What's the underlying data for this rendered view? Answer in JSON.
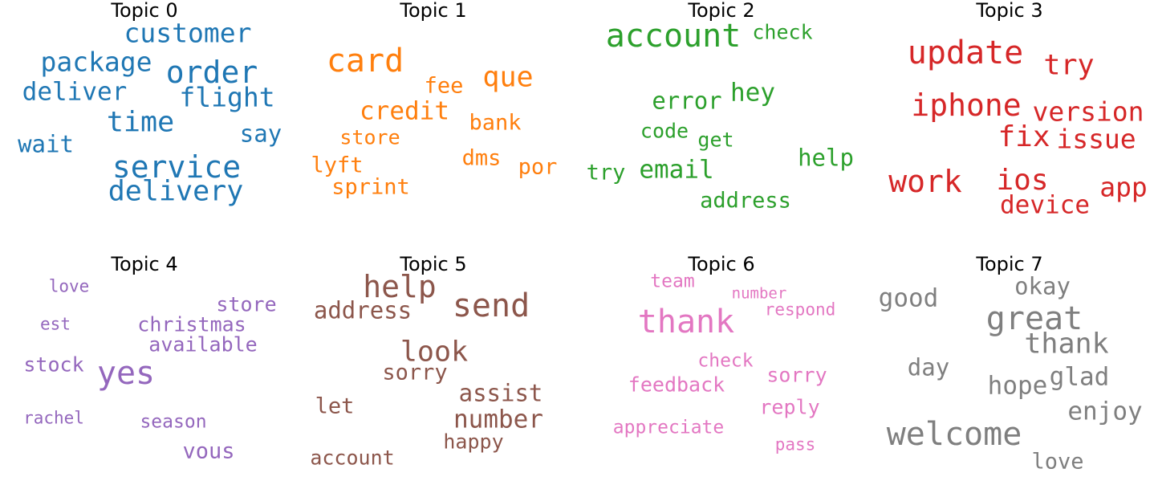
{
  "chart_data": [
    {
      "type": "wordcloud",
      "title": "Topic 0",
      "color": "#1f77b4",
      "words": [
        "customer",
        "package",
        "order",
        "deliver",
        "flight",
        "time",
        "say",
        "wait",
        "service",
        "delivery"
      ]
    },
    {
      "type": "wordcloud",
      "title": "Topic 1",
      "color": "#ff7f0e",
      "words": [
        "card",
        "que",
        "fee",
        "credit",
        "bank",
        "store",
        "dms",
        "por",
        "lyft",
        "sprint"
      ]
    },
    {
      "type": "wordcloud",
      "title": "Topic 2",
      "color": "#2ca02c",
      "words": [
        "account",
        "check",
        "hey",
        "error",
        "code",
        "get",
        "help",
        "email",
        "try",
        "address"
      ]
    },
    {
      "type": "wordcloud",
      "title": "Topic 3",
      "color": "#d62728",
      "words": [
        "update",
        "try",
        "iphone",
        "version",
        "fix",
        "issue",
        "work",
        "ios",
        "app",
        "device"
      ]
    },
    {
      "type": "wordcloud",
      "title": "Topic 4",
      "color": "#9467bd",
      "words": [
        "love",
        "store",
        "est",
        "christmas",
        "available",
        "stock",
        "yes",
        "rachel",
        "season",
        "vous"
      ]
    },
    {
      "type": "wordcloud",
      "title": "Topic 5",
      "color": "#8c564b",
      "words": [
        "help",
        "send",
        "address",
        "look",
        "sorry",
        "assist",
        "let",
        "number",
        "happy",
        "account"
      ]
    },
    {
      "type": "wordcloud",
      "title": "Topic 6",
      "color": "#e377c2",
      "words": [
        "team",
        "number",
        "respond",
        "thank",
        "check",
        "sorry",
        "feedback",
        "reply",
        "appreciate",
        "pass"
      ]
    },
    {
      "type": "wordcloud",
      "title": "Topic 7",
      "color": "#7f7f7f",
      "words": [
        "okay",
        "good",
        "great",
        "thank",
        "day",
        "glad",
        "hope",
        "enjoy",
        "welcome",
        "love"
      ]
    }
  ]
}
